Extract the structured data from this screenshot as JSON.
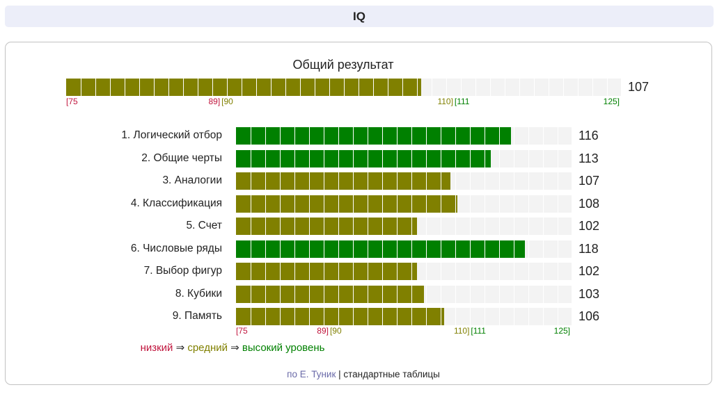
{
  "header": {
    "title": "IQ"
  },
  "chart_data": {
    "type": "bar",
    "orientation": "horizontal",
    "xlim": [
      75,
      125
    ],
    "colors": {
      "low": "#c0143c",
      "mid": "#808000",
      "high": "#008000",
      "track": "#f3f3f3"
    },
    "overall": {
      "title": "Общий результат",
      "value": 107,
      "value_label": "107"
    },
    "categories": [
      "1. Логический отбор",
      "2. Общие черты",
      "3. Аналогии",
      "4. Классификация",
      "5. Счет",
      "6. Числовые ряды",
      "7. Выбор фигур",
      "8. Кубики",
      "9. Память"
    ],
    "values": [
      116,
      113,
      107,
      108,
      102,
      118,
      102,
      103,
      106
    ],
    "value_labels": [
      "116",
      "113",
      "107",
      "108",
      "102",
      "118",
      "102",
      "103",
      "106"
    ],
    "thresholds": [
      {
        "text": "[75",
        "at": 75,
        "level": "low",
        "align": "left"
      },
      {
        "text": "89]",
        "at": 89,
        "level": "low",
        "align": "right"
      },
      {
        "text": "[90",
        "at": 89,
        "level": "mid",
        "align": "left"
      },
      {
        "text": "110]",
        "at": 110,
        "level": "mid",
        "align": "right"
      },
      {
        "text": "[111",
        "at": 110,
        "level": "high",
        "align": "left"
      },
      {
        "text": "125]",
        "at": 125,
        "level": "high",
        "align": "right"
      }
    ],
    "legend": {
      "low": "низкий",
      "arrow1": " ⇒ ",
      "mid": "средний",
      "arrow2": " ⇒ ",
      "high": "высокий уровень"
    }
  },
  "footer": {
    "author": "по Е. Туник",
    "separator": " | ",
    "tables": "стандартные таблицы"
  }
}
